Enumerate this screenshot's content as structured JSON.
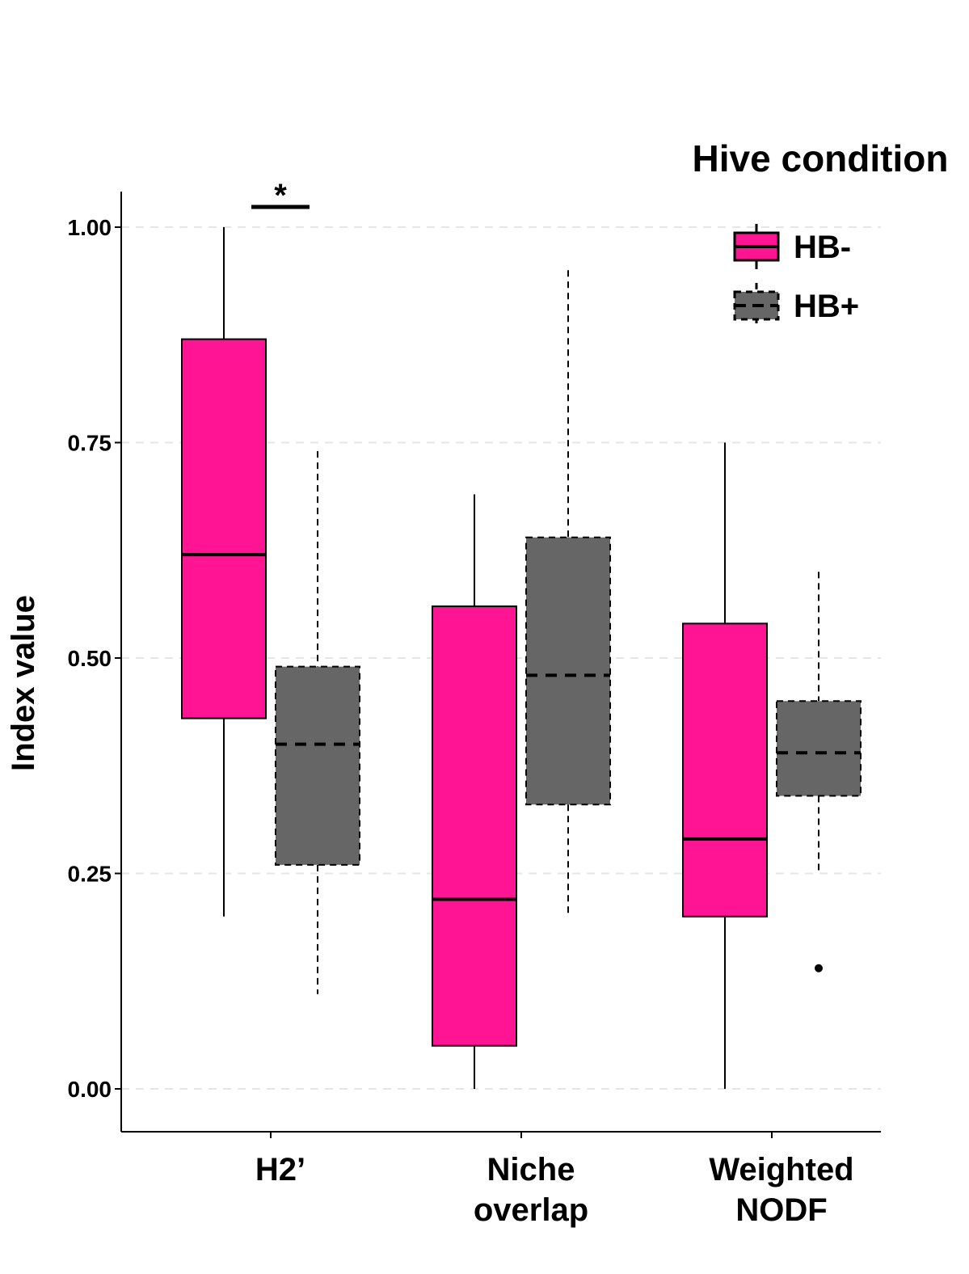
{
  "chart_data": {
    "type": "box",
    "title": "",
    "xlabel": "",
    "ylabel": "Index value",
    "ylim": [
      -0.1,
      1.04
    ],
    "yticks": [
      "0.00",
      "0.25",
      "0.50",
      "0.75",
      "1.00"
    ],
    "grid": "horizontal dashed",
    "legend_position": "top-right",
    "legend_title": "Hive condition",
    "categories": [
      {
        "lines": [
          "H2’"
        ]
      },
      {
        "lines": [
          "Niche",
          "overlap"
        ]
      },
      {
        "lines": [
          "Weighted",
          "NODF"
        ]
      }
    ],
    "series": [
      {
        "name": "HB-",
        "color": "#ff1493",
        "line_style": "solid",
        "boxes": [
          {
            "whisker_low": 0.2,
            "q1": 0.43,
            "median": 0.62,
            "q3": 0.87,
            "whisker_high": 1.0,
            "outliers": []
          },
          {
            "whisker_low": 0.0,
            "q1": 0.05,
            "median": 0.22,
            "q3": 0.56,
            "whisker_high": 0.69,
            "outliers": []
          },
          {
            "whisker_low": 0.0,
            "q1": 0.2,
            "median": 0.29,
            "q3": 0.54,
            "whisker_high": 0.75,
            "outliers": []
          }
        ]
      },
      {
        "name": "HB+",
        "color": "#666666",
        "line_style": "dashed",
        "boxes": [
          {
            "whisker_low": 0.11,
            "q1": 0.26,
            "median": 0.4,
            "q3": 0.49,
            "whisker_high": 0.74,
            "outliers": []
          },
          {
            "whisker_low": 0.2,
            "q1": 0.33,
            "median": 0.48,
            "q3": 0.64,
            "whisker_high": 0.95,
            "outliers": []
          },
          {
            "whisker_low": 0.25,
            "q1": 0.34,
            "median": 0.39,
            "q3": 0.45,
            "whisker_high": 0.6,
            "outliers": [
              0.14
            ]
          }
        ]
      }
    ],
    "annotations": [
      {
        "text": "*",
        "category": "H2’"
      }
    ]
  }
}
